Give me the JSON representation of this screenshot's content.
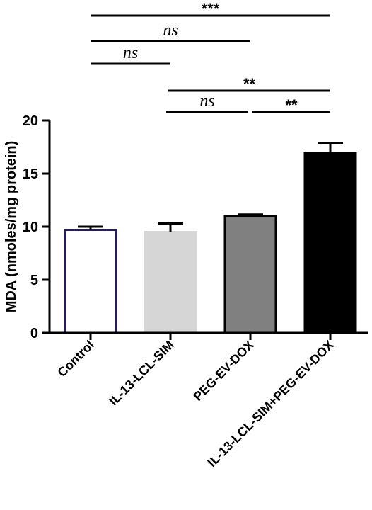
{
  "chart_data": {
    "type": "bar",
    "categories": [
      "Control",
      "IL-13-LCL-SIM",
      "PEG-EV-DOX",
      "IL-13-LCL-SIM+PEG-EV-DOX"
    ],
    "values": [
      9.7,
      9.5,
      11.0,
      16.9
    ],
    "errors": [
      0.3,
      0.8,
      0.15,
      1.0
    ],
    "ylabel": "MDA (nmoles/mg protein)",
    "xlabel": "",
    "title": "",
    "ylim": [
      0,
      20
    ],
    "yticks": [
      0,
      5,
      10,
      15,
      20
    ],
    "grid": false,
    "bar_fills": [
      "#ffffff",
      "#d6d6d6",
      "#808080",
      "#000000"
    ],
    "bar_strokes": [
      "#2a1a5e",
      "#d6d6d6",
      "#000000",
      "#000000"
    ],
    "comparisons": [
      {
        "from": 0,
        "to": 3,
        "label": "***"
      },
      {
        "from": 0,
        "to": 2,
        "label": "ns"
      },
      {
        "from": 0,
        "to": 1,
        "label": "ns"
      },
      {
        "from": 1,
        "to": 3,
        "label": "**"
      },
      {
        "from": 1,
        "to": 2,
        "label": "ns"
      },
      {
        "from": 2,
        "to": 3,
        "label": "**"
      }
    ]
  }
}
